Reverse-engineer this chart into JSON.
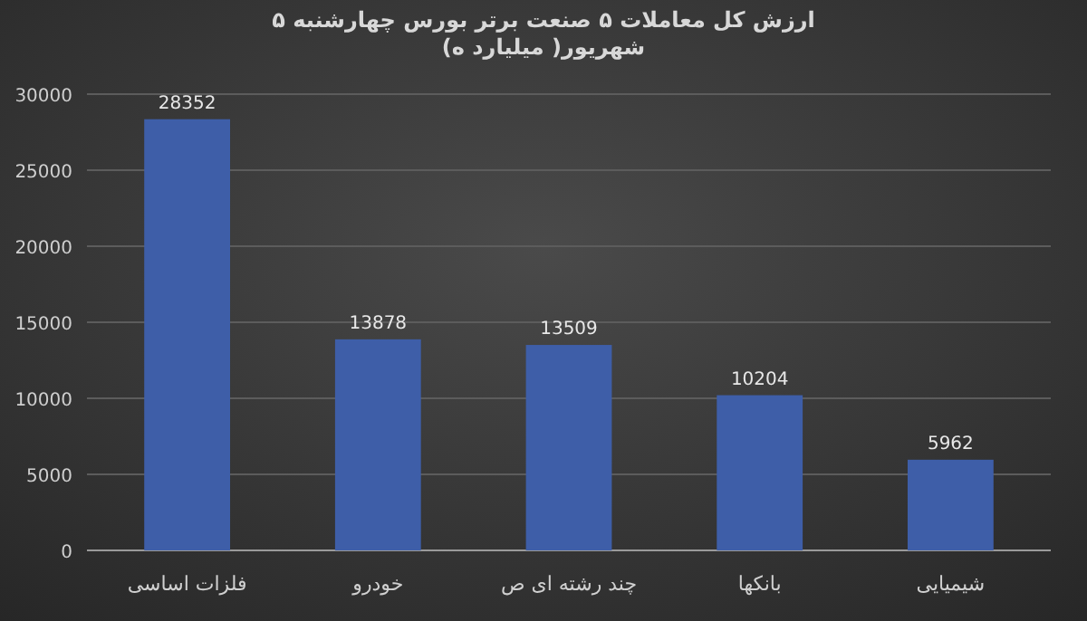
{
  "chart_data": {
    "type": "bar",
    "title": "ارزش کل معاملات ۵ صنعت برتر بورس چهارشنبه ۵ شهریور( میلیارد ه)",
    "categories": [
      "فلزات اساسی",
      "خودرو",
      "چند رشته ای ص",
      "بانکها",
      "شیمیایی"
    ],
    "values": [
      28352,
      13878,
      13509,
      10204,
      5962
    ],
    "color": "#3e5ea8",
    "data_labels": true,
    "ylim": [
      0,
      30000
    ],
    "yticks": [
      0,
      5000,
      10000,
      15000,
      20000,
      25000,
      30000
    ],
    "grid": "y"
  }
}
